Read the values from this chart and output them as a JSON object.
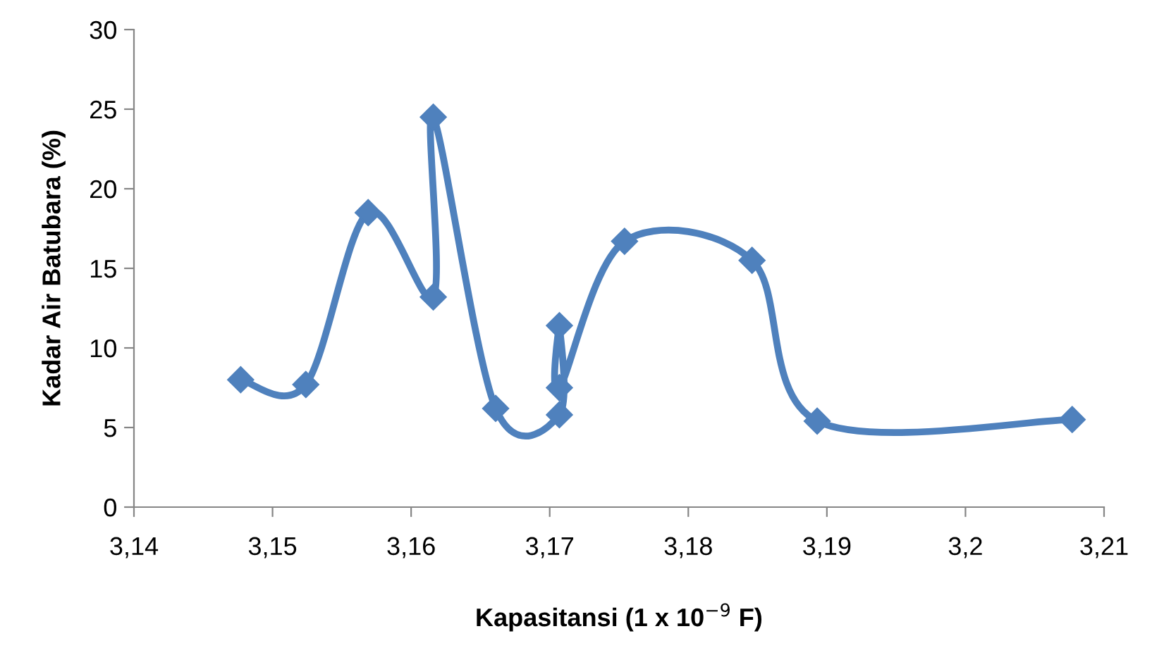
{
  "chart_data": {
    "type": "line",
    "xlabel": "Kapasitansi (1 x 10$^{−9}$ F)",
    "ylabel": "Kadar Air Batubara (%)",
    "series": [
      {
        "color": "#4f81bd",
        "x": [
          3.1477,
          3.1524,
          3.1569,
          3.1616,
          3.1616,
          3.1661,
          3.1707,
          3.1707,
          3.1707,
          3.1754,
          3.1846,
          3.1893,
          3.2077
        ],
        "values": [
          8.0,
          7.7,
          18.5,
          13.2,
          24.5,
          6.2,
          5.8,
          11.4,
          7.5,
          16.7,
          15.5,
          5.4,
          5.5
        ]
      }
    ],
    "xlim": [
      3.14,
      3.21
    ],
    "xticks": [
      {
        "value": 3.14,
        "label": "3,14"
      },
      {
        "value": 3.15,
        "label": "3,15"
      },
      {
        "value": 3.16,
        "label": "3,16"
      },
      {
        "value": 3.17,
        "label": "3,17"
      },
      {
        "value": 3.18,
        "label": "3,18"
      },
      {
        "value": 3.19,
        "label": "3,19"
      },
      {
        "value": 3.2,
        "label": "3,2"
      },
      {
        "value": 3.21,
        "label": "3,21"
      }
    ],
    "ylim": [
      0,
      30
    ],
    "yticks": [
      0,
      5,
      10,
      15,
      20,
      25,
      30
    ],
    "marker": "diamond",
    "line_style": "solid",
    "grid": false,
    "legend": false
  }
}
